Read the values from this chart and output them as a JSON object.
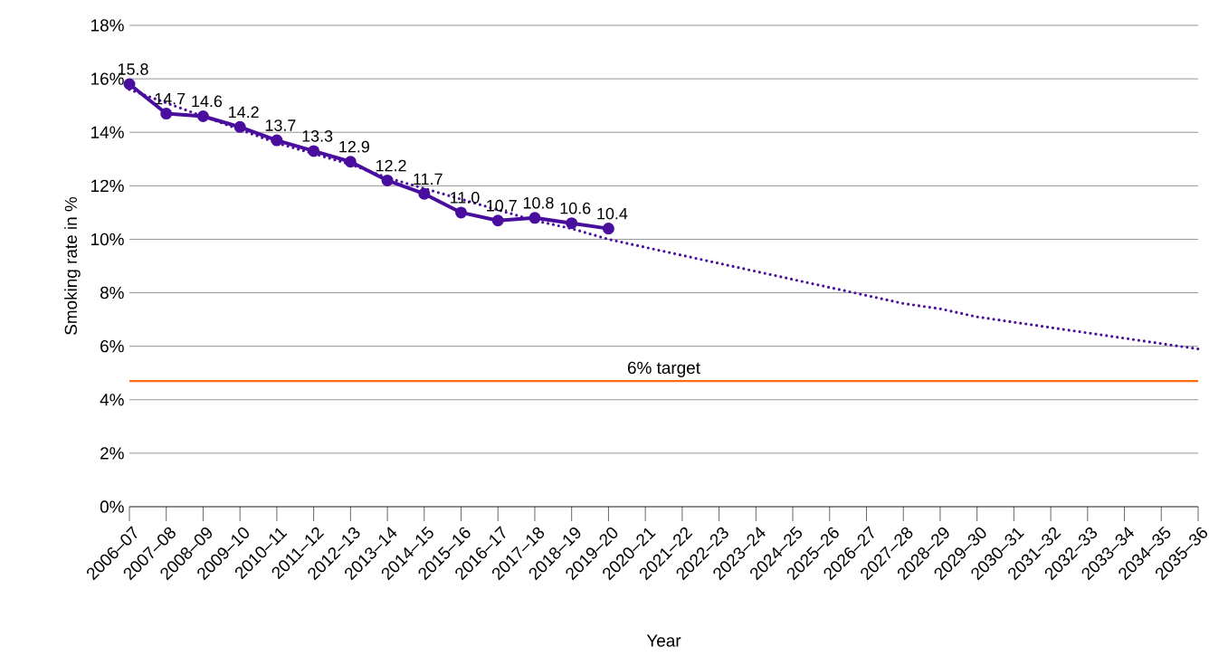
{
  "chart_data": {
    "type": "line",
    "xlabel": "Year",
    "ylabel": "Smoking rate in %",
    "categories": [
      "2006–07",
      "2007–08",
      "2008–09",
      "2009–10",
      "2010–11",
      "2011–12",
      "2012–13",
      "2013–14",
      "2014–15",
      "2015–16",
      "2016–17",
      "2017–18",
      "2018–19",
      "2019–20",
      "2020–21",
      "2021–22",
      "2022–23",
      "2023–24",
      "2024–25",
      "2025–26",
      "2026–27",
      "2027–28",
      "2028–29",
      "2029–30",
      "2030–31",
      "2031–32",
      "2032–33",
      "2033–34",
      "2034–35",
      "2035–36"
    ],
    "series": [
      {
        "color": "#4a0e9e",
        "marker": "circle",
        "line_style": "solid",
        "values": [
          15.8,
          14.7,
          14.6,
          14.2,
          13.7,
          13.3,
          12.9,
          12.2,
          11.7,
          11.0,
          10.7,
          10.8,
          10.6,
          10.4,
          null,
          null,
          null,
          null,
          null,
          null,
          null,
          null,
          null,
          null,
          null,
          null,
          null,
          null,
          null,
          null
        ],
        "value_labels": [
          "15.8",
          "14.7",
          "14.6",
          "14.2",
          "13.7",
          "13.3",
          "12.9",
          "12.2",
          "11.7",
          "11.0",
          "10.7",
          "10.8",
          "10.6",
          "10.4",
          null,
          null,
          null,
          null,
          null,
          null,
          null,
          null,
          null,
          null,
          null,
          null,
          null,
          null,
          null,
          null
        ]
      },
      {
        "color": "#4a0e9e",
        "marker": "none",
        "line_style": "dotted",
        "values": [
          15.6,
          15.1,
          14.6,
          14.1,
          13.6,
          13.2,
          12.8,
          12.3,
          11.9,
          11.5,
          11.1,
          10.7,
          10.4,
          10.0,
          9.7,
          9.4,
          9.1,
          8.8,
          8.5,
          8.2,
          7.9,
          7.6,
          7.4,
          7.1,
          6.9,
          6.7,
          6.5,
          6.3,
          6.1,
          5.9
        ]
      }
    ],
    "ylim": [
      0,
      18
    ],
    "yticks": [
      {
        "value": 0,
        "label": "0%"
      },
      {
        "value": 2,
        "label": "2%"
      },
      {
        "value": 4,
        "label": "4%"
      },
      {
        "value": 6,
        "label": "6%"
      },
      {
        "value": 8,
        "label": "8%"
      },
      {
        "value": 10,
        "label": "10%"
      },
      {
        "value": 12,
        "label": "12%"
      },
      {
        "value": 14,
        "label": "14%"
      },
      {
        "value": 16,
        "label": "16%"
      },
      {
        "value": 18,
        "label": "18%"
      }
    ],
    "grid": "y",
    "ref_lines": [
      {
        "axis": "y",
        "value": 4.7,
        "label": "6% target",
        "color": "#ff6b0f"
      }
    ]
  }
}
